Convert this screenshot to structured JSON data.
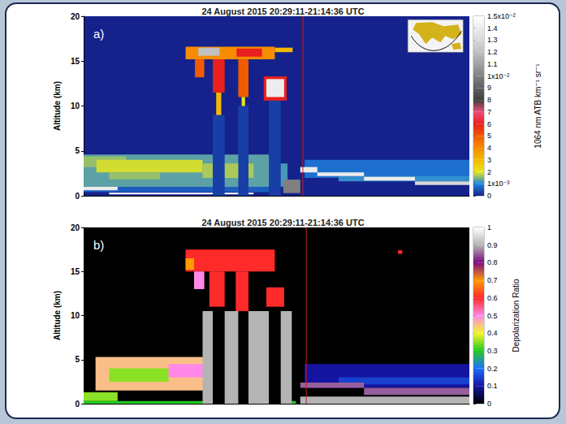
{
  "chart_data": [
    {
      "type": "heatmap",
      "title": "24 August 2015 20:29:11-21:14:36 UTC",
      "panel": "a)",
      "y_label": "Altitude (km)",
      "xlim": [
        0,
        45.4
      ],
      "ylim": [
        0,
        20
      ],
      "yticks": [
        0,
        5,
        10,
        15,
        20
      ],
      "tick_labels": "y",
      "vline": {
        "x": 25.8,
        "color": "#c81e1e"
      },
      "colorbar": {
        "label": "1064 nm ATB km⁻¹ sr⁻¹",
        "range": [
          0,
          0.015
        ],
        "ticks": [
          0,
          {
            "value": 0.001,
            "label": "1x10⁻³"
          },
          {
            "value": 0.002,
            "label": "2"
          },
          {
            "value": 0.003,
            "label": "3"
          },
          {
            "value": 0.004,
            "label": "4"
          },
          {
            "value": 0.005,
            "label": "5"
          },
          {
            "value": 0.006,
            "label": "6"
          },
          {
            "value": 0.007,
            "label": "7"
          },
          {
            "value": 0.008,
            "label": "8"
          },
          {
            "value": 0.009,
            "label": "9"
          },
          {
            "value": 0.01,
            "label": "1x10⁻²"
          },
          {
            "value": 0.011,
            "label": "1.1"
          },
          {
            "value": 0.012,
            "label": "1.2"
          },
          {
            "value": 0.013,
            "label": "1.3"
          },
          {
            "value": 0.014,
            "label": "1.4"
          },
          {
            "value": 0.015,
            "label": "1.5x10⁻²"
          }
        ],
        "colors": [
          "#15228c",
          "#1f84e0",
          "#e6e61e",
          "#f5b800",
          "#f78c00",
          "#f05a00",
          "#e8201e",
          "#f04a78",
          "#404040",
          "#606060",
          "#808080",
          "#a0a0a0",
          "#c0c0c0",
          "#d8d8d8",
          "#ececec",
          "#ffffff"
        ]
      },
      "cells": [
        [
          0,
          22,
          1.0,
          4.6,
          0.0013
        ],
        [
          22,
          24,
          1.0,
          3.6,
          0.0012
        ],
        [
          0,
          5,
          3.2,
          4.4,
          0.0016
        ],
        [
          1.5,
          14,
          2.6,
          4.0,
          0.0019
        ],
        [
          14,
          20,
          2.0,
          3.6,
          0.0017
        ],
        [
          3,
          9,
          1.8,
          2.6,
          0.0016
        ],
        [
          0,
          22,
          0.4,
          1.0,
          0.0006
        ],
        [
          0,
          4,
          0.6,
          1.0,
          0.014
        ],
        [
          3,
          20,
          0.15,
          0.35,
          0.015
        ],
        [
          26,
          45.4,
          2.0,
          4.0,
          0.0008
        ],
        [
          30,
          45.4,
          1.6,
          2.2,
          0.0011
        ],
        [
          25.5,
          27.5,
          2.6,
          3.2,
          0.014
        ],
        [
          27.5,
          33,
          2.2,
          2.6,
          0.014
        ],
        [
          33,
          39,
          1.7,
          2.1,
          0.014
        ],
        [
          39,
          45.4,
          1.2,
          1.6,
          0.013
        ],
        [
          23.5,
          25.5,
          0.3,
          1.8,
          0.01
        ],
        [
          15.2,
          16.6,
          0,
          9,
          0.0003
        ],
        [
          18.2,
          19.4,
          0,
          10,
          0.0003
        ],
        [
          21.8,
          23.2,
          0,
          10.6,
          0.0003
        ],
        [
          12.0,
          22.5,
          15.2,
          16.6,
          0.004
        ],
        [
          22.5,
          24.6,
          16.0,
          16.5,
          0.003
        ],
        [
          18,
          21,
          15.5,
          16.4,
          0.006
        ],
        [
          13.5,
          16,
          15.6,
          16.5,
          0.012
        ],
        [
          15.2,
          16.6,
          11.5,
          15.2,
          0.006
        ],
        [
          15.6,
          16.2,
          9,
          11.5,
          0.003
        ],
        [
          13.1,
          14.2,
          13.2,
          15.2,
          0.005
        ],
        [
          18.2,
          19.4,
          11.0,
          15.2,
          0.005
        ],
        [
          18.6,
          19.0,
          10,
          11,
          0.002
        ],
        [
          21.2,
          23.9,
          10.6,
          13.3,
          0.006
        ],
        [
          21.5,
          23.6,
          11.0,
          13.0,
          0.014
        ]
      ]
    },
    {
      "type": "heatmap",
      "title": "24 August 2015 20:29:11-21:14:36 UTC",
      "panel": "b)",
      "y_label": "Altitude (km)",
      "xlim": [
        0,
        45.4
      ],
      "ylim": [
        0,
        20
      ],
      "yticks": [
        0,
        5,
        10,
        15,
        20
      ],
      "tick_labels": "y",
      "vline": {
        "x": 26.2,
        "color": "#c81e1e"
      },
      "colorbar": {
        "label": "Depolarization Ratio",
        "range": [
          0,
          1
        ],
        "ticks": [
          0,
          0.1,
          0.2,
          0.3,
          0.4,
          0.5,
          0.6,
          0.7,
          0.8,
          0.9,
          1
        ],
        "colors": [
          "#000000",
          "#1414a0",
          "#1e6eff",
          "#22cc22",
          "#f5f528",
          "#ff88e8",
          "#ff2a2a",
          "#ff9a00",
          "#7a0a82",
          "#b4b4b4",
          "#ffffff"
        ]
      },
      "cells": [
        [
          1.4,
          23,
          1.5,
          5.3,
          0.45
        ],
        [
          3,
          10,
          2.5,
          4,
          0.35
        ],
        [
          10,
          16,
          3,
          4.5,
          0.5
        ],
        [
          16,
          22,
          2,
          3.5,
          0.3
        ],
        [
          0,
          4,
          0.3,
          1.3,
          0.35
        ],
        [
          0,
          25,
          0,
          0.3,
          0.3
        ],
        [
          14,
          24.5,
          0,
          10.5,
          0.9
        ],
        [
          15.2,
          16.6,
          0,
          11,
          0
        ],
        [
          18.2,
          19.4,
          0,
          11,
          0
        ],
        [
          21.8,
          23.2,
          0,
          10.6,
          0
        ],
        [
          26,
          45.4,
          1.8,
          4.5,
          0.1
        ],
        [
          30,
          45.4,
          2.2,
          3.0,
          0.15
        ],
        [
          25.5,
          33,
          1.8,
          2.4,
          0.85
        ],
        [
          33,
          45.4,
          1.0,
          1.8,
          0.85
        ],
        [
          25.5,
          45.4,
          0,
          0.8,
          0.9
        ],
        [
          12,
          22.5,
          15,
          17.5,
          0.6
        ],
        [
          12,
          13,
          15.2,
          16.5,
          0.7
        ],
        [
          14.8,
          16.6,
          11,
          15,
          0.6
        ],
        [
          17.9,
          19.4,
          10.5,
          15,
          0.6
        ],
        [
          21.5,
          23.6,
          11,
          13.2,
          0.6
        ],
        [
          13,
          14.2,
          13,
          15,
          0.5
        ],
        [
          37,
          37.5,
          17,
          17.4,
          0.6
        ]
      ]
    }
  ]
}
